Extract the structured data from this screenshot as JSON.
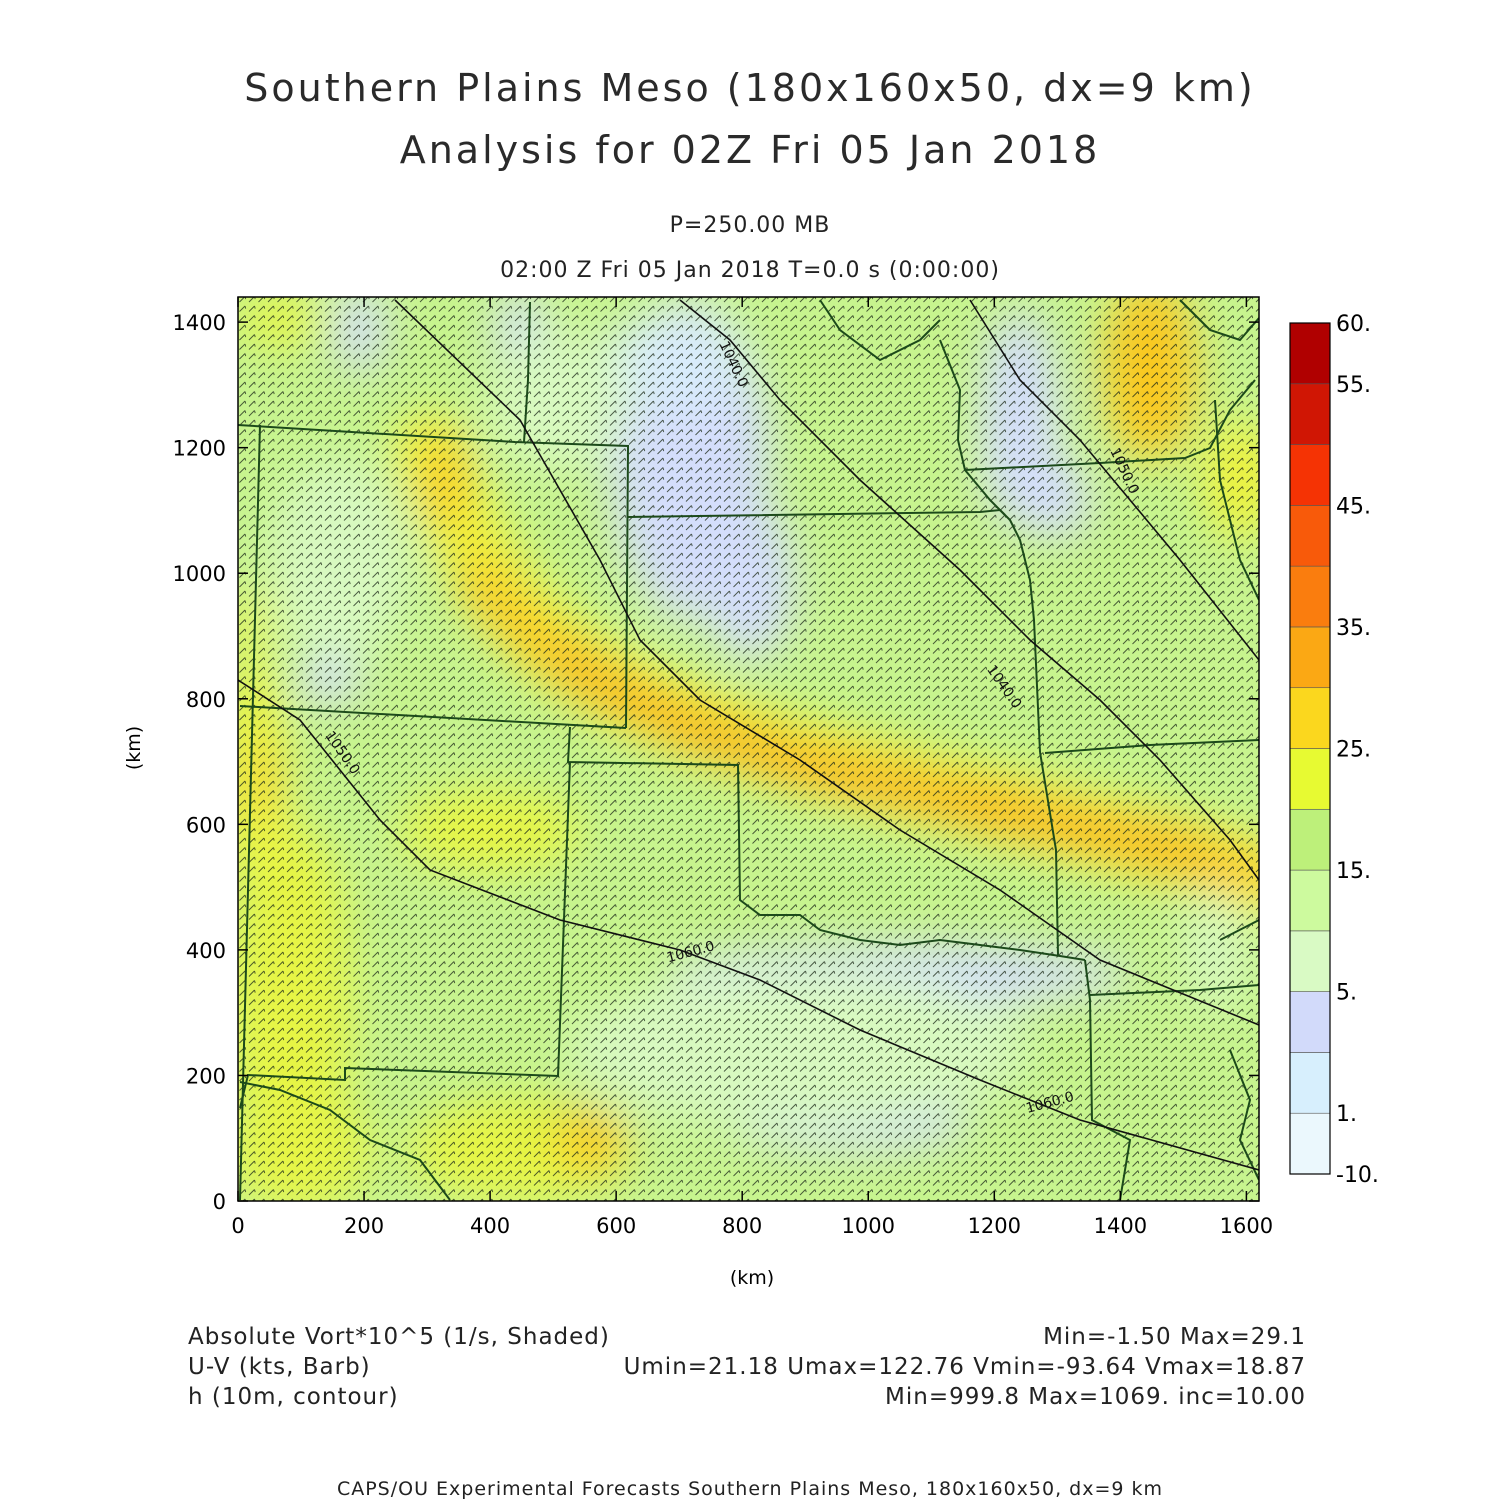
{
  "header": {
    "title_line1": "Southern Plains Meso (180x160x50, dx=9 km)",
    "title_line2": "Analysis for 02Z Fri 05 Jan 2018",
    "level": "P=250.00 MB",
    "valid_time": "02:00 Z Fri 05 Jan 2018    T=0.0 s (0:00:00)"
  },
  "axes": {
    "x_label": "(km)",
    "y_label": "(km)",
    "x_ticks": [
      0,
      200,
      400,
      600,
      800,
      1000,
      1200,
      1400,
      1600
    ],
    "y_ticks": [
      0,
      200,
      400,
      600,
      800,
      1000,
      1200,
      1400
    ],
    "xlim": [
      0,
      1620
    ],
    "ylim": [
      0,
      1440
    ]
  },
  "colorbar": {
    "labels": [
      "60.",
      "55.",
      "45.",
      "35.",
      "25.",
      "15.",
      "5.",
      "1.",
      "-10."
    ],
    "colors": [
      "#ebf8fd",
      "#d7effd",
      "#d2dafa",
      "#d9fac4",
      "#cdfa9e",
      "#bdf07a",
      "#e7fa32",
      "#fbd71e",
      "#fba814",
      "#fa7d0e",
      "#f85a0a",
      "#f53304",
      "#d01604",
      "#b00000"
    ]
  },
  "contours": {
    "labels": [
      {
        "text": "1040.0",
        "x": 780,
        "y": 1330,
        "rot": 65
      },
      {
        "text": "1050.0",
        "x": 1400,
        "y": 1160,
        "rot": 65
      },
      {
        "text": "1040.0",
        "x": 1210,
        "y": 815,
        "rot": 55
      },
      {
        "text": "1050.0",
        "x": 160,
        "y": 710,
        "rot": 55
      },
      {
        "text": "1060.0",
        "x": 720,
        "y": 390,
        "rot": -15
      },
      {
        "text": "1060.0",
        "x": 1290,
        "y": 150,
        "rot": -15
      }
    ]
  },
  "legend": {
    "field1": "Absolute Vort*10^5 (1/s, Shaded)",
    "field1_stats": "Min=-1.50 Max=29.1",
    "field2": "U-V (kts, Barb)",
    "field2_stats": "Umin=21.18 Umax=122.76 Vmin=-93.64 Vmax=18.87",
    "field3": "h (10m, contour)",
    "field3_stats": "Min=999.8 Max=1069. inc=10.00"
  },
  "credit": "CAPS/OU Experimental Forecasts  Southern Plains Meso, 180x160x50, dx=9 km"
}
